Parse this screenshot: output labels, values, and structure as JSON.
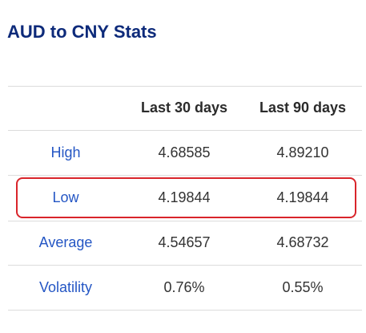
{
  "header": {
    "title": "AUD to CNY Stats"
  },
  "table": {
    "columns": [
      "Last 30 days",
      "Last 90 days"
    ],
    "rows": [
      [
        "High",
        "4.68585",
        "4.89210"
      ],
      [
        "Low",
        "4.19844",
        "4.19844"
      ],
      [
        "Average",
        "4.54657",
        "4.68732"
      ],
      [
        "Volatility",
        "0.76%",
        "0.55%"
      ]
    ]
  }
}
